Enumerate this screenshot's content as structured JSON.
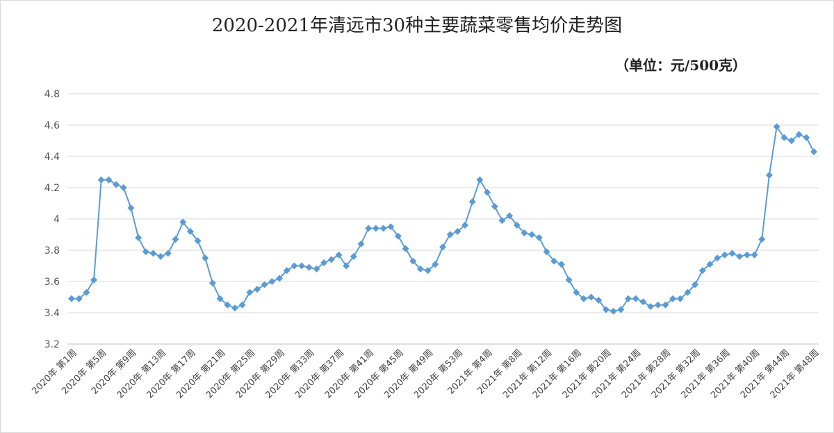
{
  "chart_data": {
    "type": "line",
    "title": "2020-2021年清远市30种主要蔬菜零售均价走势图",
    "unit": "（单位：元/500克）",
    "ylim": [
      3.2,
      4.8
    ],
    "yticks": [
      "3.2",
      "3.4",
      "3.6",
      "3.8",
      "4",
      "4.2",
      "4.4",
      "4.6",
      "4.8"
    ],
    "grid": true,
    "legend": "none",
    "colors": {
      "line": "#5b9bd5",
      "grid": "#d9d9d9"
    },
    "x": [
      "2020年第1周",
      "2020年第2周",
      "2020年第3周",
      "2020年第4周",
      "2020年第5周",
      "2020年第6周",
      "2020年第7周",
      "2020年第8周",
      "2020年第9周",
      "2020年第10周",
      "2020年第11周",
      "2020年第12周",
      "2020年第13周",
      "2020年第14周",
      "2020年第15周",
      "2020年第16周",
      "2020年第17周",
      "2020年第18周",
      "2020年第19周",
      "2020年第20周",
      "2020年第21周",
      "2020年第22周",
      "2020年第23周",
      "2020年第24周",
      "2020年第25周",
      "2020年第26周",
      "2020年第27周",
      "2020年第28周",
      "2020年第29周",
      "2020年第30周",
      "2020年第31周",
      "2020年第32周",
      "2020年第33周",
      "2020年第34周",
      "2020年第35周",
      "2020年第36周",
      "2020年第37周",
      "2020年第38周",
      "2020年第39周",
      "2020年第40周",
      "2020年第41周",
      "2020年第42周",
      "2020年第43周",
      "2020年第44周",
      "2020年第45周",
      "2020年第46周",
      "2020年第47周",
      "2020年第48周",
      "2020年第49周",
      "2020年第50周",
      "2020年第51周",
      "2020年第52周",
      "2020年第53周",
      "2021年第1周",
      "2021年第2周",
      "2021年第3周",
      "2021年第4周",
      "2021年第5周",
      "2021年第6周",
      "2021年第7周",
      "2021年第8周",
      "2021年第9周",
      "2021年第10周",
      "2021年第11周",
      "2021年第12周",
      "2021年第13周",
      "2021年第14周",
      "2021年第15周",
      "2021年第16周",
      "2021年第17周",
      "2021年第18周",
      "2021年第19周",
      "2021年第20周",
      "2021年第21周",
      "2021年第22周",
      "2021年第23周",
      "2021年第24周",
      "2021年第25周",
      "2021年第26周",
      "2021年第27周",
      "2021年第28周",
      "2021年第29周",
      "2021年第30周",
      "2021年第31周",
      "2021年第32周",
      "2021年第33周",
      "2021年第34周",
      "2021年第35周",
      "2021年第36周",
      "2021年第37周",
      "2021年第38周",
      "2021年第39周",
      "2021年第40周",
      "2021年第41周",
      "2021年第42周",
      "2021年第43周",
      "2021年第44周",
      "2021年第45周",
      "2021年第46周",
      "2021年第47周",
      "2021年第48周"
    ],
    "tick_labels": [
      "2020年 第1周",
      "2020年 第5周",
      "2020年 第9周",
      "2020年 第13周",
      "2020年 第17周",
      "2020年 第21周",
      "2020年 第25周",
      "2020年 第29周",
      "2020年 第33周",
      "2020年 第37周",
      "2020年 第41周",
      "2020年 第45周",
      "2020年 第49周",
      "2020年 第53周",
      "2021年 第4周",
      "2021年 第8周",
      "2021年 第12周",
      "2021年 第16周",
      "2021年 第20周",
      "2021年 第24周",
      "2021年 第28周",
      "2021年 第32周",
      "2021年 第36周",
      "2021年 第40周",
      "2021年 第44周",
      "2021年 第48周"
    ],
    "tick_every": 4,
    "series": [
      {
        "values": [
          3.49,
          3.49,
          3.53,
          3.61,
          4.25,
          4.25,
          4.22,
          4.2,
          4.07,
          3.88,
          3.79,
          3.78,
          3.76,
          3.78,
          3.87,
          3.98,
          3.92,
          3.86,
          3.75,
          3.59,
          3.49,
          3.45,
          3.43,
          3.45,
          3.53,
          3.55,
          3.58,
          3.6,
          3.62,
          3.67,
          3.7,
          3.7,
          3.69,
          3.68,
          3.72,
          3.74,
          3.77,
          3.7,
          3.76,
          3.84,
          3.94,
          3.94,
          3.94,
          3.95,
          3.89,
          3.81,
          3.73,
          3.68,
          3.67,
          3.71,
          3.82,
          3.9,
          3.92,
          3.96,
          4.11,
          4.25,
          4.17,
          4.08,
          3.99,
          4.02,
          3.96,
          3.91,
          3.9,
          3.88,
          3.79,
          3.73,
          3.71,
          3.61,
          3.53,
          3.49,
          3.5,
          3.48,
          3.42,
          3.41,
          3.42,
          3.49,
          3.49,
          3.47,
          3.44,
          3.45,
          3.45,
          3.49,
          3.49,
          3.53,
          3.58,
          3.67,
          3.71,
          3.75,
          3.77,
          3.78,
          3.76,
          3.77,
          3.77,
          3.87,
          4.28,
          4.59,
          4.52,
          4.5,
          4.54,
          4.52,
          4.43
        ]
      }
    ]
  }
}
